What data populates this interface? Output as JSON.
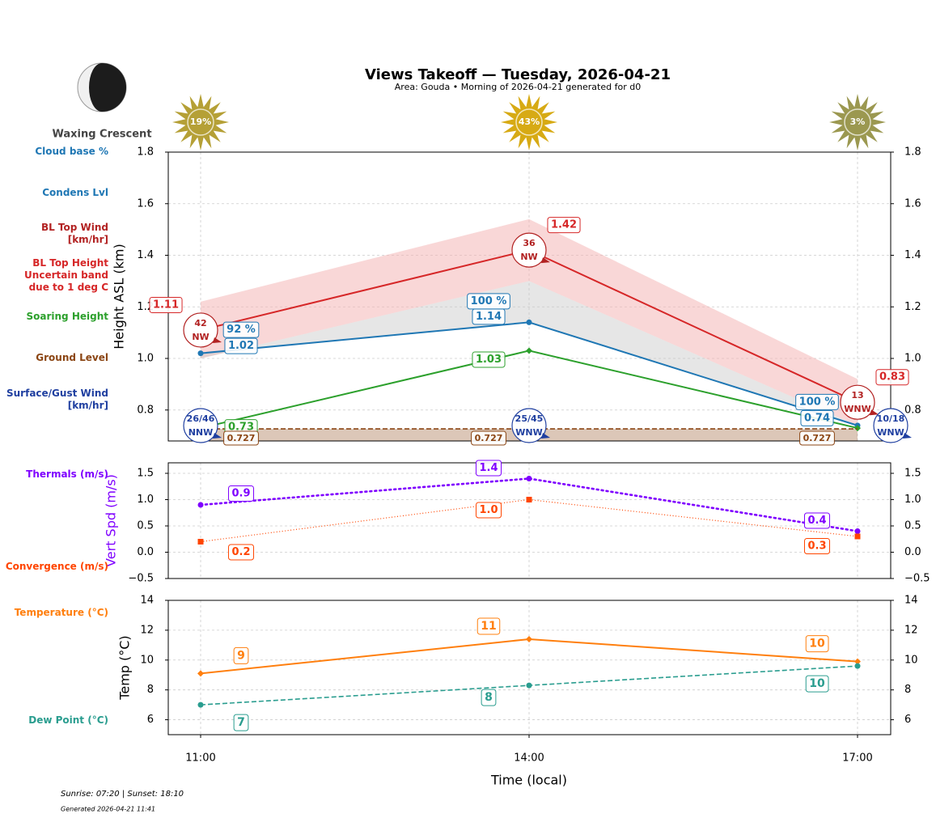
{
  "header": {
    "title": "Views Takeoff — Tuesday, 2026-04-21",
    "subtitle": "Area: Gouda • Morning of 2026-04-21 generated for d0",
    "moon_phase": "Waxing Crescent"
  },
  "chart_data": [
    {
      "type": "line",
      "ylabel": "Height ASL (km)",
      "sunshine": {
        "values": [
          19,
          43,
          3
        ],
        "value_labels": [
          "19%",
          "43%",
          "3%"
        ]
      },
      "ylim": [
        0.68,
        1.8
      ],
      "yticks": [
        0.8,
        {
          "value": 1.0,
          "label": "1.0"
        },
        1.2,
        1.4,
        1.6,
        1.8
      ],
      "grid": true,
      "band": {
        "name": "Uncertain band\ndue to 1 deg C",
        "color": "#f4b0b0",
        "upper": [
          1.22,
          1.54,
          0.92
        ],
        "lower": [
          1.0,
          1.3,
          0.74
        ]
      },
      "series": [
        {
          "name": "BL Top Height",
          "color": "#d62728",
          "values": [
            1.11,
            1.42,
            0.83
          ],
          "linestyle": "solid",
          "marker": "none"
        },
        {
          "name": "Condens Lvl",
          "color": "#1f77b4",
          "values": [
            1.02,
            1.14,
            0.74
          ],
          "linestyle": "solid",
          "marker": "circle"
        },
        {
          "name": "Soaring Height",
          "color": "#2ca02c",
          "values": [
            0.73,
            1.03,
            0.73
          ],
          "value_labels": [
            "0.73",
            "1.03",
            null
          ],
          "linestyle": "solid",
          "marker": "diamond"
        },
        {
          "name": "Ground Level",
          "color": "#8b4513",
          "values": [
            0.727,
            0.727,
            0.727
          ],
          "linestyle": "dashed",
          "marker": "none"
        }
      ],
      "cloud_base": {
        "name": "Cloud base %",
        "color": "#1f77b4",
        "values": [
          92,
          100,
          100
        ],
        "value_labels": [
          "92 %",
          "100 %",
          "100 %"
        ]
      },
      "winds": [
        {
          "name": "BL Top Wind\n[km/hr]",
          "color": "#b22222",
          "speed": [
            42,
            36,
            13
          ],
          "direction": [
            "NW",
            "NW",
            "WNW"
          ]
        },
        {
          "name": "Surface/Gust Wind\n[km/hr]",
          "color": "#1f3fa0",
          "speed": [
            "26/46",
            "25/45",
            "10/18"
          ],
          "direction": [
            "NNW",
            "WNW",
            "WNW"
          ]
        }
      ]
    },
    {
      "type": "line",
      "ylabel": "Vert Spd (m/s)",
      "ylabel_color": "#7f00ff",
      "ylim": [
        -0.5,
        1.7
      ],
      "yticks": [
        {
          "value": -0.5,
          "label": "−0.5"
        },
        {
          "value": 0,
          "label": "0.0"
        },
        0.5,
        {
          "value": 1,
          "label": "1.0"
        },
        1.5
      ],
      "grid": true,
      "series": [
        {
          "name": "Thermals (m/s)",
          "color": "#7f00ff",
          "values": [
            0.9,
            1.4,
            0.4
          ],
          "linestyle": "dotted",
          "marker": "circle"
        },
        {
          "name": "Convergence (m/s)",
          "color": "#ff4500",
          "values": [
            0.2,
            1.0,
            0.3
          ],
          "value_labels": [
            "0.2",
            "1.0",
            "0.3"
          ],
          "linestyle": "fine-dotted",
          "marker": "square"
        }
      ]
    },
    {
      "type": "line",
      "ylabel": "Temp (°C)",
      "xlabel": "Time (local)",
      "categories": [
        "11:00",
        "14:00",
        "17:00"
      ],
      "ylim": [
        5,
        14
      ],
      "yticks": [
        6,
        8,
        10,
        12,
        14
      ],
      "grid": true,
      "series": [
        {
          "name": "Temperature (°C)",
          "color": "#ff7f0e",
          "values": [
            9.1,
            11.4,
            9.9
          ],
          "value_labels": [
            "9",
            "11",
            "10"
          ],
          "linestyle": "solid",
          "marker": "diamond"
        },
        {
          "name": "Dew Point (°C)",
          "color": "#2a9d8f",
          "values": [
            7.0,
            8.3,
            9.6
          ],
          "value_labels": [
            "7",
            "8",
            "10"
          ],
          "linestyle": "dashed",
          "marker": "circle"
        }
      ]
    }
  ],
  "footer": {
    "sun_times": "Sunrise: 07:20 | Sunset: 18:10",
    "generated": "Generated 2026-04-21 11:41"
  }
}
